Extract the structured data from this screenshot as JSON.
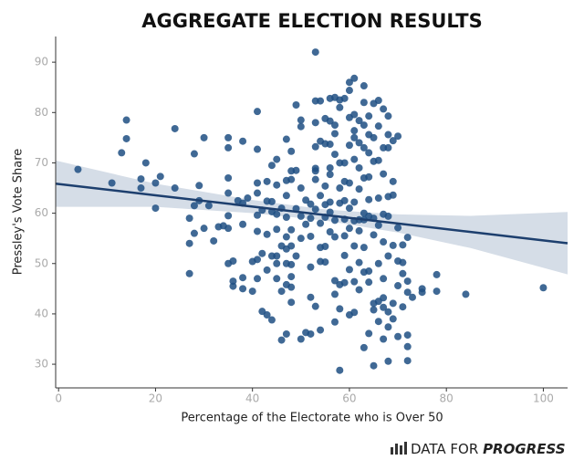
{
  "chart_data": {
    "type": "scatter",
    "title": "AGGREGATE ELECTION RESULTS",
    "x_label": "Percentage of the Electorate who is Over 50",
    "y_label": "Pressley's Vote Share",
    "xlim": [
      -0.6,
      105
    ],
    "ylim": [
      25.3,
      95.1
    ],
    "xticks": [
      0,
      20,
      40,
      60,
      80,
      100
    ],
    "yticks": [
      30,
      40,
      50,
      60,
      70,
      80,
      90
    ],
    "grid": false,
    "color": "#1f4f82",
    "x": [
      4,
      11,
      13,
      14,
      14,
      17,
      17,
      18,
      20,
      20,
      21,
      24,
      24,
      27,
      27,
      27,
      28,
      28,
      28,
      29,
      29,
      30,
      30,
      31,
      32,
      33,
      34,
      35,
      35,
      35,
      35,
      35,
      35,
      35,
      36,
      36,
      36,
      37,
      38,
      38,
      38,
      38,
      38,
      39,
      40,
      40,
      41,
      41,
      41,
      41,
      41,
      41,
      41,
      41,
      42,
      42,
      42,
      43,
      43,
      43,
      43,
      43,
      44,
      44,
      44,
      44,
      44,
      45,
      45,
      45,
      45,
      45,
      45,
      45,
      46,
      46,
      46,
      46,
      47,
      47,
      47,
      47,
      47,
      47,
      47,
      47,
      47,
      48,
      48,
      48,
      48,
      48,
      48,
      48,
      48,
      48,
      49,
      49,
      49,
      49,
      50,
      50,
      50,
      50,
      50,
      50,
      51,
      51,
      51,
      52,
      52,
      52,
      52,
      52,
      52,
      53,
      53,
      53,
      53,
      53,
      53,
      53,
      53,
      53,
      54,
      54,
      54,
      54,
      54,
      54,
      54,
      55,
      55,
      55,
      55,
      55,
      55,
      55,
      56,
      56,
      56,
      56,
      56,
      56,
      56,
      56,
      57,
      57,
      57,
      57,
      57,
      57,
      57,
      57,
      57,
      58,
      58,
      58,
      58,
      58,
      58,
      58,
      58,
      59,
      59,
      59,
      59,
      59,
      59,
      59,
      59,
      60,
      60,
      60,
      60,
      60,
      60,
      60,
      60,
      60,
      61,
      61,
      61,
      61,
      61,
      61,
      61,
      61,
      61,
      61,
      62,
      62,
      62,
      62,
      62,
      62,
      62,
      62,
      63,
      63,
      63,
      63,
      63,
      63,
      63,
      63,
      63,
      63,
      64,
      64,
      64,
      64,
      64,
      64,
      64,
      64,
      64,
      65,
      65,
      65,
      65,
      65,
      65,
      65,
      65,
      66,
      66,
      66,
      66,
      66,
      66,
      66,
      66,
      67,
      67,
      67,
      67,
      67,
      67,
      67,
      67,
      67,
      68,
      68,
      68,
      68,
      68,
      68,
      68,
      68,
      68,
      69,
      69,
      69,
      69,
      69,
      69,
      70,
      70,
      70,
      70,
      70,
      71,
      71,
      71,
      71,
      72,
      72,
      72,
      72,
      72,
      72,
      73,
      75,
      75,
      78,
      78,
      84,
      100
    ],
    "values": [
      68.7,
      66,
      72,
      78.5,
      74.8,
      66.8,
      65,
      70,
      61,
      66,
      67.3,
      65,
      76.8,
      59,
      48,
      54,
      56,
      61.5,
      71.8,
      65.5,
      62.5,
      75,
      57,
      61.5,
      54.5,
      57.3,
      57.5,
      75,
      73,
      67,
      64,
      59.5,
      57,
      50,
      46.5,
      50.5,
      45.5,
      62.5,
      74.3,
      62,
      57.8,
      47.2,
      45,
      63,
      44.5,
      50.4,
      80.2,
      72.7,
      66,
      64,
      59.6,
      56.4,
      47,
      50.8,
      60.6,
      52,
      40.5,
      66.3,
      62.4,
      55.8,
      48.7,
      39.8,
      69.5,
      62.3,
      60.3,
      51.5,
      38.8,
      70.7,
      65.6,
      59.8,
      56.8,
      51.5,
      50,
      47,
      61,
      53.5,
      44.5,
      34.8,
      74.7,
      66.5,
      63.5,
      59.2,
      55.3,
      52.9,
      50,
      45.8,
      36,
      72.3,
      68.4,
      66.7,
      56.7,
      53.5,
      49.8,
      47.4,
      45.3,
      42.3,
      81.5,
      68.5,
      60.9,
      51.5,
      78.5,
      77.2,
      65,
      59.4,
      55,
      35,
      62.6,
      57.8,
      36.3,
      61.8,
      59,
      55.4,
      49.3,
      43.3,
      36,
      92,
      78,
      82.3,
      73.2,
      68.4,
      68.9,
      66.7,
      60.8,
      41.5,
      82.3,
      74.3,
      63.5,
      58,
      53.2,
      50.4,
      36.8,
      78.8,
      73.8,
      65.4,
      61.7,
      59.2,
      53.4,
      50.3,
      82.8,
      78.3,
      73.7,
      69,
      67.7,
      62.2,
      60.2,
      56.3,
      83,
      77.5,
      75.8,
      71.7,
      58.6,
      55.3,
      46.6,
      43.9,
      38.4,
      82.5,
      81,
      70,
      65,
      62,
      45.8,
      41,
      28.8,
      82.8,
      70,
      66.3,
      62.5,
      58.8,
      55.5,
      51.6,
      46.2,
      86,
      84.4,
      79,
      73.5,
      66,
      61,
      57,
      48.8,
      39.8,
      86.8,
      79.6,
      76.4,
      75,
      70.7,
      62.2,
      58.5,
      53.5,
      46.4,
      40.3,
      78.4,
      74,
      69,
      64.8,
      58.7,
      56.5,
      50.2,
      44.8,
      85.3,
      82,
      77.5,
      73,
      67,
      60,
      58.7,
      53.2,
      48.3,
      33.3,
      79.3,
      75.6,
      72,
      67.2,
      62.7,
      59.4,
      48.5,
      46.3,
      36.1,
      81.8,
      75,
      70.3,
      59,
      55.7,
      42.1,
      40.8,
      29.7,
      82.4,
      77.3,
      70.5,
      63,
      57.6,
      50,
      42.5,
      38.5,
      80.7,
      73,
      67.8,
      59.8,
      54.3,
      47,
      43.2,
      41.3,
      35,
      79.3,
      75.6,
      73,
      63.3,
      59.4,
      51.5,
      40.4,
      37.4,
      30.6,
      74.4,
      63.6,
      66.3,
      53.6,
      42.1,
      39,
      75.3,
      57.1,
      50.5,
      45.6,
      35.5,
      53.7,
      50.2,
      48,
      41.4,
      55.2,
      46.5,
      44.3,
      35.8,
      33.5,
      30.7,
      43.3,
      45,
      44.3,
      47.8,
      44.5,
      43.9,
      45.2
    ],
    "fit": {
      "color": "#1d3f6e",
      "band_color": "#d5dde7",
      "x": [
        -0.6,
        20,
        40,
        55,
        70,
        85,
        105
      ],
      "values": [
        65.87,
        63.56,
        61.32,
        59.64,
        57.96,
        56.28,
        54.04
      ],
      "lower": [
        61.27,
        61.26,
        60.02,
        58.54,
        56.16,
        53.08,
        47.84
      ],
      "upper": [
        70.47,
        65.86,
        62.62,
        60.74,
        59.76,
        59.48,
        60.24
      ]
    },
    "logo": {
      "prefix": "DATA FOR",
      "brand": "PROGRESS"
    }
  }
}
